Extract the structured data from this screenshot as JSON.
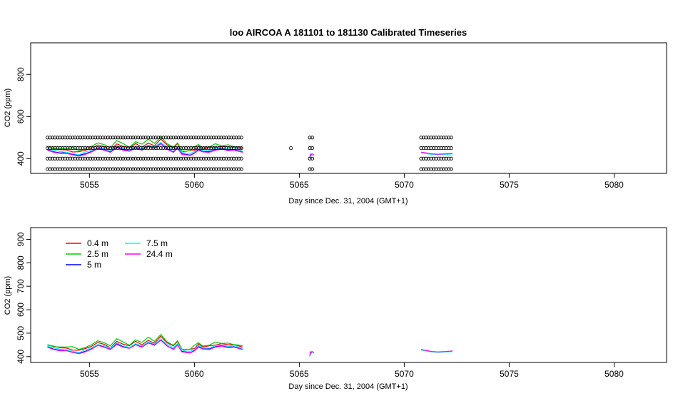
{
  "figure": {
    "title": "loo   AIRCOA  A    181101  to  181130   Calibrated Timeseries"
  },
  "chart_data": [
    {
      "type": "scatter",
      "panel": "top",
      "xlabel": "Day since Dec. 31, 2004 (GMT+1)",
      "ylabel": "CO2 (ppm)",
      "xlim": [
        5052.2,
        5082.5
      ],
      "ylim": [
        330,
        950
      ],
      "xticks": [
        5055,
        5060,
        5065,
        5070,
        5075,
        5080
      ],
      "yticks": [
        400,
        600,
        800
      ],
      "grid": false,
      "marker": "open-circle",
      "marker_series_y": [
        500,
        450,
        400,
        350
      ],
      "marker_blocks": [
        [
          5053.0,
          5062.3
        ],
        [
          5065.5,
          5065.7
        ],
        [
          5070.8,
          5072.3
        ]
      ],
      "isolated_markers": [
        {
          "x": 5064.6,
          "y": 450
        }
      ],
      "series": [
        {
          "name": "0.4 m",
          "color": "#ff0000",
          "block_start": [
            480,
            460,
            475,
            455,
            465,
            460
          ]
        },
        {
          "name": "2.5 m",
          "color": "#00cd00",
          "block_start": [
            470,
            455,
            470,
            450,
            460,
            458
          ]
        },
        {
          "name": "5 m",
          "color": "#0000ff",
          "block_start": [
            455,
            445,
            455,
            440,
            450,
            448
          ]
        },
        {
          "name": "7.5 m",
          "color": "#00ffff",
          "block_start": [
            450,
            440,
            450,
            438,
            445,
            445
          ]
        },
        {
          "name": "24.4 m",
          "color": "#ff00ff",
          "block_start": [
            445,
            438,
            445,
            435,
            440,
            440
          ]
        }
      ]
    },
    {
      "type": "line",
      "panel": "bottom",
      "xlabel": "Day since Dec. 31, 2004 (GMT+1)",
      "ylabel": "CO2 (ppm)",
      "xlim": [
        5052.2,
        5082.5
      ],
      "ylim": [
        375,
        950
      ],
      "xticks": [
        5055,
        5060,
        5065,
        5070,
        5075,
        5080
      ],
      "yticks": [
        400,
        500,
        600,
        700,
        800,
        900
      ],
      "grid": false,
      "legend_position": "top-left",
      "series": [
        {
          "name": "0.4 m",
          "color": "#ff0000",
          "offset": 12
        },
        {
          "name": "2.5 m",
          "color": "#00cd00",
          "offset": 18
        },
        {
          "name": "5 m",
          "color": "#0000ff",
          "offset": 2
        },
        {
          "name": "7.5 m",
          "color": "#00ffff",
          "offset": 6
        },
        {
          "name": "24.4 m",
          "color": "#ff00ff",
          "offset": 0
        }
      ],
      "baseline": {
        "x": [
          5053.0,
          5053.3,
          5053.6,
          5053.9,
          5054.2,
          5054.5,
          5054.8,
          5055.1,
          5055.4,
          5055.7,
          5056.0,
          5056.3,
          5056.6,
          5056.9,
          5057.2,
          5057.5,
          5057.8,
          5058.1,
          5058.4,
          5058.7,
          5059.0,
          5059.2,
          5059.4,
          5059.6,
          5059.8,
          5060.0,
          5060.2,
          5060.4,
          5060.7,
          5061.0,
          5061.3,
          5061.6,
          5061.9,
          5062.3
        ],
        "y": [
          440,
          430,
          425,
          425,
          418,
          412,
          420,
          432,
          448,
          440,
          430,
          452,
          440,
          435,
          450,
          440,
          458,
          448,
          470,
          445,
          430,
          450,
          420,
          418,
          415,
          425,
          440,
          432,
          430,
          440,
          445,
          438,
          440,
          430
        ]
      },
      "late_segments": [
        {
          "x": [
            5065.5,
            5065.52,
            5065.55,
            5065.6,
            5065.7
          ],
          "y": [
            400,
            418,
            412,
            420,
            415
          ]
        },
        {
          "x": [
            5070.8,
            5071.0,
            5071.3,
            5071.6,
            5072.0,
            5072.3
          ],
          "y": [
            428,
            425,
            420,
            418,
            420,
            422
          ]
        }
      ]
    }
  ]
}
